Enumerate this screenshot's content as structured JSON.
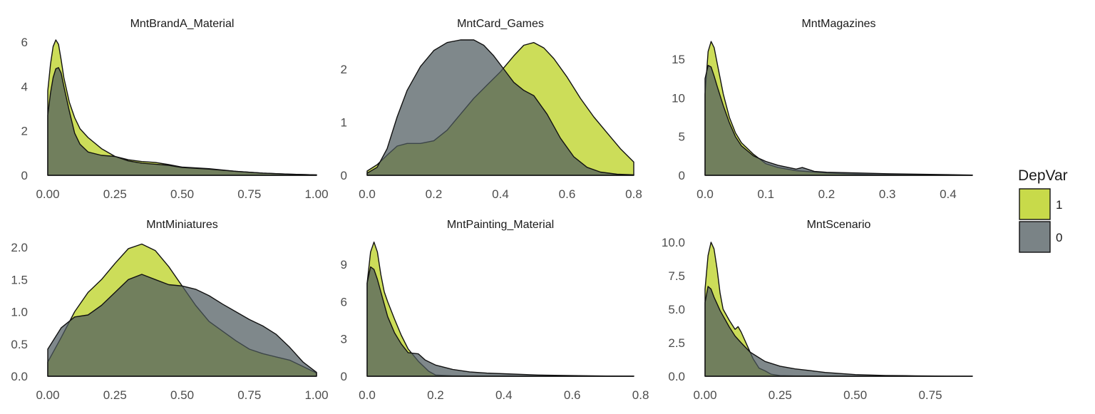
{
  "legend": {
    "title": "DepVar",
    "items": [
      {
        "label": "1",
        "color": "#bed42a"
      },
      {
        "label": "0",
        "color": "#4e5a5e"
      }
    ]
  },
  "chart_data": [
    {
      "type": "area",
      "title": "MntBrandA_Material",
      "xlim": [
        0,
        1.0
      ],
      "ylim": [
        0,
        6.1
      ],
      "x_ticks": [
        0,
        0.25,
        0.5,
        0.75,
        1.0
      ],
      "x_tick_labels": [
        "0.00",
        "0.25",
        "0.50",
        "0.75",
        "1.00"
      ],
      "y_ticks": [
        0,
        2,
        4,
        6
      ],
      "y_tick_labels": [
        "0",
        "2",
        "4",
        "6"
      ],
      "series": [
        {
          "name": "1",
          "color": "#bed42a",
          "x": [
            0,
            0.01,
            0.02,
            0.03,
            0.04,
            0.05,
            0.06,
            0.08,
            0.1,
            0.12,
            0.15,
            0.2,
            0.25,
            0.3,
            0.35,
            0.4,
            0.45,
            0.5,
            0.6,
            0.7,
            0.8,
            0.9,
            1.0
          ],
          "y": [
            3.8,
            5.0,
            5.8,
            6.1,
            5.9,
            5.2,
            4.4,
            3.3,
            2.6,
            2.1,
            1.7,
            1.2,
            0.85,
            0.7,
            0.62,
            0.58,
            0.48,
            0.37,
            0.3,
            0.18,
            0.1,
            0.05,
            0.02
          ]
        },
        {
          "name": "0",
          "color": "#4e5a5e",
          "x": [
            0,
            0.01,
            0.02,
            0.03,
            0.04,
            0.05,
            0.06,
            0.08,
            0.1,
            0.12,
            0.15,
            0.2,
            0.25,
            0.3,
            0.35,
            0.4,
            0.45,
            0.5,
            0.6,
            0.7,
            0.8,
            0.9,
            1.0
          ],
          "y": [
            2.7,
            3.7,
            4.4,
            4.8,
            4.85,
            4.6,
            4.0,
            2.9,
            1.9,
            1.4,
            1.05,
            0.9,
            0.85,
            0.65,
            0.55,
            0.5,
            0.45,
            0.35,
            0.28,
            0.18,
            0.1,
            0.05,
            0.02
          ]
        }
      ]
    },
    {
      "type": "area",
      "title": "MntCard_Games",
      "xlim": [
        0,
        0.8
      ],
      "ylim": [
        0,
        2.55
      ],
      "x_ticks": [
        0,
        0.2,
        0.4,
        0.6,
        0.8
      ],
      "x_tick_labels": [
        "0.0",
        "0.2",
        "0.4",
        "0.6",
        "0.8"
      ],
      "y_ticks": [
        0,
        1,
        2
      ],
      "y_tick_labels": [
        "0",
        "1",
        "2"
      ],
      "series": [
        {
          "name": "1",
          "color": "#bed42a",
          "x": [
            0,
            0.03,
            0.06,
            0.09,
            0.12,
            0.16,
            0.2,
            0.24,
            0.28,
            0.32,
            0.36,
            0.4,
            0.44,
            0.47,
            0.5,
            0.53,
            0.56,
            0.6,
            0.64,
            0.68,
            0.72,
            0.76,
            0.8
          ],
          "y": [
            0.08,
            0.2,
            0.38,
            0.55,
            0.6,
            0.6,
            0.65,
            0.85,
            1.15,
            1.45,
            1.7,
            1.95,
            2.25,
            2.45,
            2.5,
            2.4,
            2.2,
            1.85,
            1.45,
            1.1,
            0.8,
            0.5,
            0.25
          ]
        },
        {
          "name": "0",
          "color": "#4e5a5e",
          "x": [
            0,
            0.03,
            0.06,
            0.09,
            0.12,
            0.16,
            0.2,
            0.24,
            0.28,
            0.32,
            0.35,
            0.38,
            0.41,
            0.44,
            0.47,
            0.5,
            0.54,
            0.58,
            0.62,
            0.66,
            0.7,
            0.75,
            0.8
          ],
          "y": [
            0.04,
            0.15,
            0.5,
            1.1,
            1.6,
            2.05,
            2.35,
            2.5,
            2.55,
            2.55,
            2.45,
            2.25,
            2.0,
            1.75,
            1.6,
            1.5,
            1.15,
            0.7,
            0.35,
            0.15,
            0.06,
            0.02,
            0.01
          ]
        }
      ]
    },
    {
      "type": "area",
      "title": "MntMagazines",
      "xlim": [
        0,
        0.44
      ],
      "ylim": [
        0,
        17.5
      ],
      "x_ticks": [
        0,
        0.1,
        0.2,
        0.3,
        0.4
      ],
      "x_tick_labels": [
        "0.0",
        "0.1",
        "0.2",
        "0.3",
        "0.4"
      ],
      "y_ticks": [
        0,
        5,
        10,
        15
      ],
      "y_tick_labels": [
        "0",
        "5",
        "10",
        "15"
      ],
      "series": [
        {
          "name": "1",
          "color": "#bed42a",
          "x": [
            0,
            0.005,
            0.01,
            0.015,
            0.02,
            0.03,
            0.04,
            0.05,
            0.06,
            0.08,
            0.1,
            0.12,
            0.15,
            0.2,
            0.25,
            0.3,
            0.35,
            0.4,
            0.44
          ],
          "y": [
            10.5,
            16.0,
            17.3,
            16.5,
            14.5,
            10.5,
            7.5,
            5.5,
            4.2,
            2.7,
            1.5,
            1.0,
            0.6,
            0.3,
            0.15,
            0.07,
            0.04,
            0.02,
            0.01
          ]
        },
        {
          "name": "0",
          "color": "#4e5a5e",
          "x": [
            0,
            0.005,
            0.01,
            0.015,
            0.02,
            0.03,
            0.04,
            0.05,
            0.06,
            0.08,
            0.1,
            0.12,
            0.15,
            0.16,
            0.18,
            0.2,
            0.25,
            0.3,
            0.35,
            0.4,
            0.44
          ],
          "y": [
            12.5,
            14.2,
            14.0,
            12.8,
            11.5,
            9.0,
            6.8,
            5.0,
            3.8,
            2.5,
            1.8,
            1.3,
            0.8,
            1.0,
            0.5,
            0.4,
            0.3,
            0.2,
            0.15,
            0.08,
            0.03
          ]
        }
      ]
    },
    {
      "type": "area",
      "title": "MntMiniatures",
      "xlim": [
        0,
        1.0
      ],
      "ylim": [
        0,
        2.1
      ],
      "x_ticks": [
        0,
        0.25,
        0.5,
        0.75,
        1.0
      ],
      "x_tick_labels": [
        "0.00",
        "0.25",
        "0.50",
        "0.75",
        "1.00"
      ],
      "y_ticks": [
        0,
        0.5,
        1.0,
        1.5,
        2.0
      ],
      "y_tick_labels": [
        "0.0",
        "0.5",
        "1.0",
        "1.5",
        "2.0"
      ],
      "series": [
        {
          "name": "1",
          "color": "#bed42a",
          "x": [
            0,
            0.05,
            0.1,
            0.15,
            0.2,
            0.25,
            0.3,
            0.35,
            0.4,
            0.45,
            0.5,
            0.55,
            0.6,
            0.65,
            0.7,
            0.75,
            0.8,
            0.85,
            0.9,
            0.95,
            1.0
          ],
          "y": [
            0.22,
            0.6,
            1.0,
            1.3,
            1.5,
            1.75,
            1.98,
            2.05,
            1.95,
            1.7,
            1.4,
            1.1,
            0.85,
            0.7,
            0.55,
            0.42,
            0.35,
            0.3,
            0.25,
            0.15,
            0.05
          ]
        },
        {
          "name": "0",
          "color": "#4e5a5e",
          "x": [
            0,
            0.05,
            0.1,
            0.15,
            0.2,
            0.25,
            0.3,
            0.35,
            0.4,
            0.45,
            0.5,
            0.55,
            0.6,
            0.65,
            0.7,
            0.75,
            0.8,
            0.85,
            0.9,
            0.95,
            1.0
          ],
          "y": [
            0.42,
            0.75,
            0.92,
            0.95,
            1.1,
            1.3,
            1.5,
            1.58,
            1.5,
            1.42,
            1.4,
            1.35,
            1.25,
            1.12,
            1.0,
            0.88,
            0.78,
            0.65,
            0.45,
            0.22,
            0.06
          ]
        }
      ]
    },
    {
      "type": "area",
      "title": "MntPainting_Material",
      "xlim": [
        0,
        0.78
      ],
      "ylim": [
        0,
        10.9
      ],
      "x_ticks": [
        0,
        0.2,
        0.4,
        0.6,
        0.8
      ],
      "x_tick_labels": [
        "0.0",
        "0.2",
        "0.4",
        "0.6",
        "0.8"
      ],
      "y_ticks": [
        0,
        3,
        6,
        9
      ],
      "y_tick_labels": [
        "0",
        "3",
        "6",
        "9"
      ],
      "series": [
        {
          "name": "1",
          "color": "#bed42a",
          "x": [
            0,
            0.01,
            0.02,
            0.03,
            0.04,
            0.05,
            0.06,
            0.08,
            0.1,
            0.12,
            0.15,
            0.18,
            0.2,
            0.25,
            0.3,
            0.4,
            0.5,
            0.6,
            0.7,
            0.78
          ],
          "y": [
            7.5,
            10.0,
            10.8,
            10.0,
            8.2,
            6.8,
            6.0,
            4.6,
            3.3,
            2.2,
            1.2,
            0.4,
            0.1,
            0.03,
            0.02,
            0.01,
            0.0,
            0.0,
            0.0,
            0.0
          ]
        },
        {
          "name": "0",
          "color": "#4e5a5e",
          "x": [
            0,
            0.01,
            0.02,
            0.03,
            0.04,
            0.05,
            0.06,
            0.08,
            0.1,
            0.12,
            0.15,
            0.17,
            0.2,
            0.25,
            0.3,
            0.35,
            0.4,
            0.5,
            0.6,
            0.7,
            0.78
          ],
          "y": [
            7.5,
            8.8,
            8.6,
            7.8,
            6.8,
            5.8,
            4.8,
            3.5,
            2.6,
            1.9,
            1.8,
            1.3,
            0.9,
            0.55,
            0.35,
            0.25,
            0.2,
            0.1,
            0.05,
            0.02,
            0.01
          ]
        }
      ]
    },
    {
      "type": "area",
      "title": "MntScenario",
      "xlim": [
        0,
        0.89
      ],
      "ylim": [
        0,
        10.1
      ],
      "x_ticks": [
        0,
        0.25,
        0.5,
        0.75
      ],
      "x_tick_labels": [
        "0.00",
        "0.25",
        "0.50",
        "0.75"
      ],
      "y_ticks": [
        0,
        2.5,
        5.0,
        7.5,
        10.0
      ],
      "y_tick_labels": [
        "0.0",
        "2.5",
        "5.0",
        "7.5",
        "10.0"
      ],
      "series": [
        {
          "name": "1",
          "color": "#bed42a",
          "x": [
            0,
            0.01,
            0.02,
            0.03,
            0.04,
            0.05,
            0.06,
            0.08,
            0.1,
            0.11,
            0.12,
            0.14,
            0.16,
            0.18,
            0.2,
            0.22,
            0.25,
            0.3,
            0.4,
            0.5,
            0.6,
            0.89
          ],
          "y": [
            6.5,
            9.0,
            10.0,
            9.5,
            8.0,
            6.2,
            5.0,
            4.2,
            3.5,
            3.7,
            3.3,
            2.3,
            1.3,
            0.6,
            0.4,
            0.15,
            0.05,
            0.02,
            0.01,
            0.0,
            0.0,
            0.0
          ]
        },
        {
          "name": "0",
          "color": "#4e5a5e",
          "x": [
            0,
            0.01,
            0.02,
            0.03,
            0.04,
            0.05,
            0.06,
            0.08,
            0.1,
            0.12,
            0.15,
            0.2,
            0.25,
            0.3,
            0.35,
            0.4,
            0.5,
            0.6,
            0.7,
            0.8,
            0.89
          ],
          "y": [
            5.5,
            6.7,
            6.5,
            5.9,
            5.4,
            4.9,
            4.5,
            3.7,
            3.0,
            2.5,
            1.8,
            1.1,
            0.75,
            0.55,
            0.42,
            0.28,
            0.12,
            0.06,
            0.03,
            0.01,
            0.0
          ]
        }
      ]
    }
  ]
}
